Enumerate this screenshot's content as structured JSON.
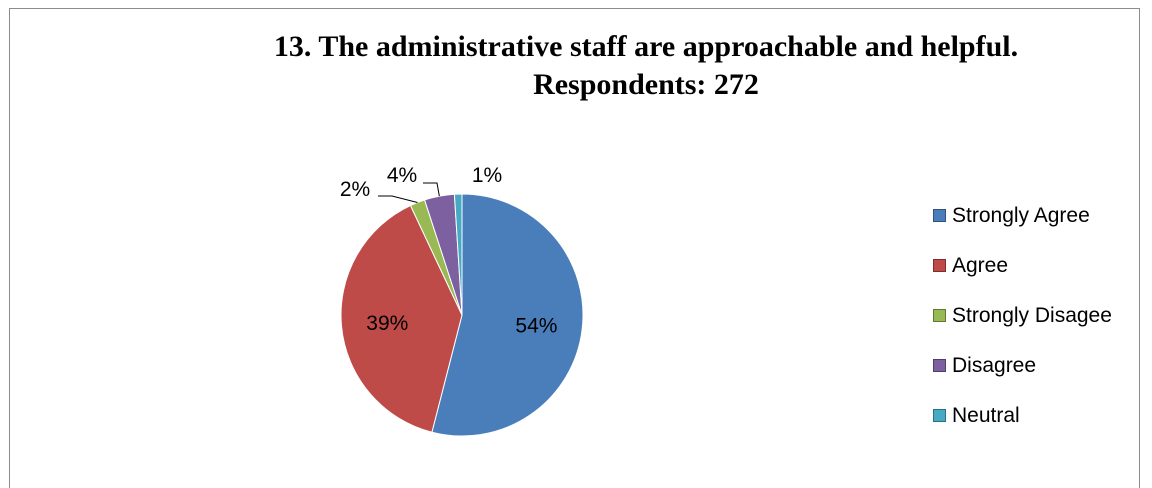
{
  "chart_data": {
    "type": "pie",
    "title": "13. The administrative staff are approachable and helpful.",
    "subtitle": "Respondents: 272",
    "slices": [
      {
        "label": "Strongly Agree",
        "value": 54,
        "value_label": "54%",
        "color": "#4A7EBB"
      },
      {
        "label": "Agree",
        "value": 39,
        "value_label": "39%",
        "color": "#BE4B48"
      },
      {
        "label": "Strongly Disagee",
        "value": 2,
        "value_label": "2%",
        "color": "#98B954"
      },
      {
        "label": "Disagree",
        "value": 4,
        "value_label": "4%",
        "color": "#7D60A0"
      },
      {
        "label": "Neutral",
        "value": 1,
        "value_label": "1%",
        "color": "#46AAC5"
      }
    ],
    "legend_position": "right"
  }
}
